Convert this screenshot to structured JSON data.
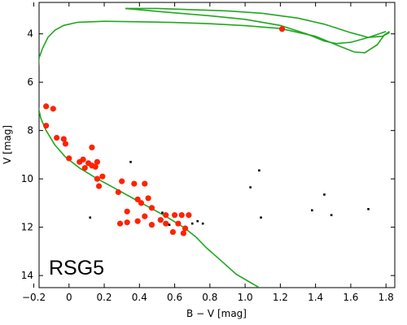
{
  "chart_data": {
    "type": "scatter",
    "xlabel": "B − V [mag]",
    "ylabel": "V [mag]",
    "xlim": [
      -0.17,
      1.85
    ],
    "ylim": [
      14.5,
      2.7
    ],
    "y_inverted": true,
    "x_ticks": [
      -0.2,
      0,
      0.2,
      0.4,
      0.6,
      0.8,
      1.0,
      1.2,
      1.4,
      1.6,
      1.8
    ],
    "x_tick_labels": [
      "−0.2",
      "0",
      "0.2",
      "0.4",
      "0.6",
      "0.8",
      "1.0",
      "1.2",
      "1.4",
      "1.6",
      "1.8"
    ],
    "y_ticks": [
      4,
      6,
      8,
      10,
      12,
      14
    ],
    "y_tick_labels": [
      "4",
      "6",
      "8",
      "10",
      "12",
      "14"
    ],
    "annotation": "RSG5",
    "grid": false,
    "isochrone": {
      "color": "#1fa81f",
      "main_sequence": [
        [
          -0.17,
          5.0
        ],
        [
          -0.15,
          4.6
        ],
        [
          -0.12,
          4.15
        ],
        [
          -0.08,
          3.85
        ],
        [
          -0.03,
          3.65
        ],
        [
          0.05,
          3.52
        ],
        [
          0.2,
          3.48
        ],
        [
          0.4,
          3.5
        ],
        [
          0.6,
          3.53
        ],
        [
          0.8,
          3.58
        ],
        [
          1.0,
          3.66
        ],
        [
          1.2,
          3.78
        ],
        [
          1.4,
          4.1
        ],
        [
          1.55,
          4.55
        ],
        [
          1.62,
          4.75
        ],
        [
          1.68,
          4.78
        ],
        [
          1.75,
          4.45
        ],
        [
          1.79,
          4.05
        ],
        [
          1.82,
          3.9
        ]
      ],
      "lower_branch": [
        [
          -0.17,
          5.0
        ],
        [
          -0.18,
          6.0
        ],
        [
          -0.175,
          7.0
        ],
        [
          -0.16,
          7.5
        ],
        [
          -0.13,
          8.0
        ],
        [
          -0.08,
          8.6
        ],
        [
          -0.02,
          9.1
        ],
        [
          0.06,
          9.55
        ],
        [
          0.15,
          9.95
        ],
        [
          0.25,
          10.35
        ],
        [
          0.35,
          10.75
        ],
        [
          0.45,
          11.15
        ],
        [
          0.55,
          11.55
        ],
        [
          0.65,
          12.0
        ],
        [
          0.72,
          12.4
        ],
        [
          0.78,
          12.85
        ],
        [
          0.85,
          13.3
        ],
        [
          0.95,
          13.95
        ],
        [
          1.08,
          14.5
        ]
      ],
      "giant_upper": [
        [
          0.32,
          2.95
        ],
        [
          0.5,
          2.95
        ],
        [
          0.7,
          3.0
        ],
        [
          0.9,
          3.05
        ],
        [
          1.1,
          3.15
        ],
        [
          1.3,
          3.35
        ],
        [
          1.45,
          3.6
        ],
        [
          1.6,
          3.95
        ],
        [
          1.7,
          4.15
        ],
        [
          1.78,
          4.1
        ],
        [
          1.82,
          3.95
        ]
      ],
      "giant_lower": [
        [
          0.32,
          2.95
        ],
        [
          0.55,
          3.1
        ],
        [
          0.8,
          3.25
        ],
        [
          1.0,
          3.4
        ],
        [
          1.2,
          3.65
        ],
        [
          1.35,
          4.0
        ],
        [
          1.45,
          4.3
        ],
        [
          1.52,
          4.4
        ],
        [
          1.6,
          4.35
        ],
        [
          1.7,
          4.15
        ],
        [
          1.8,
          3.9
        ]
      ]
    },
    "series": [
      {
        "kind": "members",
        "color": "#ff2200",
        "points": [
          {
            "x": -0.13,
            "y": 7.0
          },
          {
            "x": -0.09,
            "y": 7.1
          },
          {
            "x": -0.13,
            "y": 7.8
          },
          {
            "x": -0.07,
            "y": 8.3
          },
          {
            "x": -0.03,
            "y": 8.35
          },
          {
            "x": -0.02,
            "y": 8.55
          },
          {
            "x": 0.0,
            "y": 9.15
          },
          {
            "x": 0.06,
            "y": 9.3
          },
          {
            "x": 0.08,
            "y": 9.2
          },
          {
            "x": 0.09,
            "y": 9.55
          },
          {
            "x": 0.11,
            "y": 9.35
          },
          {
            "x": 0.13,
            "y": 9.45
          },
          {
            "x": 0.16,
            "y": 9.3
          },
          {
            "x": 0.15,
            "y": 9.5
          },
          {
            "x": 0.13,
            "y": 8.7
          },
          {
            "x": 0.19,
            "y": 9.9
          },
          {
            "x": 0.16,
            "y": 10.0
          },
          {
            "x": 0.17,
            "y": 10.3
          },
          {
            "x": 0.3,
            "y": 10.1
          },
          {
            "x": 0.37,
            "y": 10.2
          },
          {
            "x": 0.28,
            "y": 10.55
          },
          {
            "x": 0.43,
            "y": 10.2
          },
          {
            "x": 0.39,
            "y": 10.85
          },
          {
            "x": 0.45,
            "y": 10.8
          },
          {
            "x": 0.41,
            "y": 11.0
          },
          {
            "x": 0.47,
            "y": 11.2
          },
          {
            "x": 0.33,
            "y": 11.35
          },
          {
            "x": 0.43,
            "y": 11.55
          },
          {
            "x": 0.55,
            "y": 11.5
          },
          {
            "x": 0.52,
            "y": 11.7
          },
          {
            "x": 0.6,
            "y": 11.5
          },
          {
            "x": 0.64,
            "y": 11.5
          },
          {
            "x": 0.68,
            "y": 11.5
          },
          {
            "x": 0.39,
            "y": 11.75
          },
          {
            "x": 0.33,
            "y": 11.8
          },
          {
            "x": 0.29,
            "y": 11.85
          },
          {
            "x": 0.47,
            "y": 11.9
          },
          {
            "x": 0.55,
            "y": 11.85
          },
          {
            "x": 0.62,
            "y": 11.85
          },
          {
            "x": 0.66,
            "y": 12.05
          },
          {
            "x": 0.59,
            "y": 12.2
          },
          {
            "x": 0.65,
            "y": 12.25
          },
          {
            "x": 1.21,
            "y": 3.8
          }
        ]
      },
      {
        "kind": "field",
        "color": "#000000",
        "points": [
          {
            "x": 0.35,
            "y": 9.3
          },
          {
            "x": 1.08,
            "y": 9.65
          },
          {
            "x": 1.03,
            "y": 10.35
          },
          {
            "x": 1.45,
            "y": 10.65
          },
          {
            "x": 1.38,
            "y": 11.3
          },
          {
            "x": 1.49,
            "y": 11.5
          },
          {
            "x": 1.7,
            "y": 11.25
          },
          {
            "x": 1.09,
            "y": 11.6
          },
          {
            "x": 0.12,
            "y": 11.6
          },
          {
            "x": 0.53,
            "y": 11.4
          },
          {
            "x": 0.73,
            "y": 11.75
          },
          {
            "x": 0.76,
            "y": 11.85
          },
          {
            "x": 0.7,
            "y": 11.85
          },
          {
            "x": 0.57,
            "y": 11.9
          }
        ]
      }
    ]
  }
}
